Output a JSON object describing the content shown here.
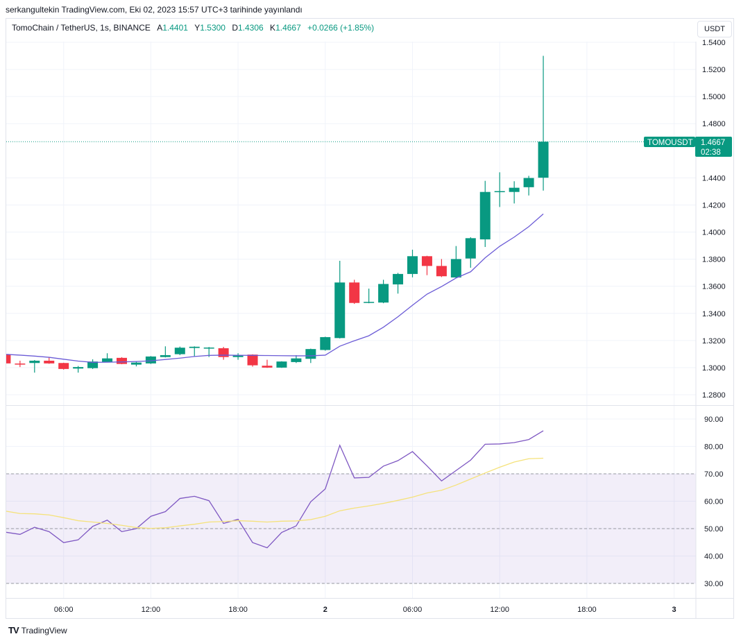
{
  "publisher_line": "serkangultekin TradingView.com, Eki 02, 2023 15:57 UTC+3 tarihinde yayınlandı",
  "legend": {
    "symbol": "TomoChain / TetherUS, 1s, BINANCE",
    "open_label": "A",
    "open": "1.4401",
    "high_label": "Y",
    "high": "1.5300",
    "low_label": "D",
    "low": "1.4306",
    "close_label": "K",
    "close": "1.4667",
    "change": "+0.0266 (+1.85%)"
  },
  "currency_button": "USDT",
  "price_label": {
    "ticker": "TOMOUSDT",
    "price": "1.4667",
    "countdown": "02:38"
  },
  "footer": {
    "brand": "TradingView"
  },
  "colors": {
    "up": "#089981",
    "down": "#f23645",
    "ma": "#6b5bd6",
    "rsi": "#7e57c2",
    "rsi_ma": "#f5e27a",
    "band": "#7e57c2",
    "accent": "#089981"
  },
  "chart_data": [
    {
      "type": "candlestick",
      "interval": "1h",
      "ylim": [
        1.27,
        1.55
      ],
      "y_ticks": [
        "1.5400",
        "1.5200",
        "1.5000",
        "1.4800",
        "1.4400",
        "1.4200",
        "1.4000",
        "1.3800",
        "1.3600",
        "1.3400",
        "1.3200",
        "1.3000",
        "1.2800"
      ],
      "x_ticks": [
        {
          "label": "06:00",
          "hour": 6
        },
        {
          "label": "12:00",
          "hour": 12
        },
        {
          "label": "18:00",
          "hour": 18
        },
        {
          "label": "2",
          "hour": 24,
          "bold": true
        },
        {
          "label": "06:00",
          "hour": 30
        },
        {
          "label": "12:00",
          "hour": 36
        },
        {
          "label": "18:00",
          "hour": 42
        },
        {
          "label": "3",
          "hour": 48,
          "bold": true
        }
      ],
      "grid": true,
      "last_price": 1.4667,
      "candles": [
        {
          "hour": 2,
          "o": 1.3099,
          "h": 1.3103,
          "l": 1.3028,
          "c": 1.3031
        },
        {
          "hour": 3,
          "o": 1.303,
          "h": 1.3051,
          "l": 1.3004,
          "c": 1.3029
        },
        {
          "hour": 4,
          "o": 1.3034,
          "h": 1.3056,
          "l": 1.2963,
          "c": 1.3051
        },
        {
          "hour": 5,
          "o": 1.3051,
          "h": 1.3077,
          "l": 1.3028,
          "c": 1.3031
        },
        {
          "hour": 6,
          "o": 1.3034,
          "h": 1.3036,
          "l": 1.2985,
          "c": 1.299
        },
        {
          "hour": 7,
          "o": 1.2993,
          "h": 1.3012,
          "l": 1.2963,
          "c": 1.3004
        },
        {
          "hour": 8,
          "o": 1.2996,
          "h": 1.3061,
          "l": 1.299,
          "c": 1.3045
        },
        {
          "hour": 9,
          "o": 1.3041,
          "h": 1.3106,
          "l": 1.3038,
          "c": 1.3068
        },
        {
          "hour": 10,
          "o": 1.3072,
          "h": 1.3077,
          "l": 1.3025,
          "c": 1.3027
        },
        {
          "hour": 11,
          "o": 1.3022,
          "h": 1.3048,
          "l": 1.3009,
          "c": 1.3037
        },
        {
          "hour": 12,
          "o": 1.3031,
          "h": 1.3085,
          "l": 1.3027,
          "c": 1.3082
        },
        {
          "hour": 13,
          "o": 1.3078,
          "h": 1.3157,
          "l": 1.3075,
          "c": 1.3092
        },
        {
          "hour": 14,
          "o": 1.3099,
          "h": 1.3155,
          "l": 1.3092,
          "c": 1.3147
        },
        {
          "hour": 15,
          "o": 1.3145,
          "h": 1.3157,
          "l": 1.3082,
          "c": 1.3154
        },
        {
          "hour": 16,
          "o": 1.3145,
          "h": 1.3152,
          "l": 1.3078,
          "c": 1.3148
        },
        {
          "hour": 17,
          "o": 1.3143,
          "h": 1.3153,
          "l": 1.3058,
          "c": 1.3078
        },
        {
          "hour": 18,
          "o": 1.3078,
          "h": 1.3106,
          "l": 1.3058,
          "c": 1.3092
        },
        {
          "hour": 19,
          "o": 1.3096,
          "h": 1.3098,
          "l": 1.3007,
          "c": 1.3017
        },
        {
          "hour": 20,
          "o": 1.3014,
          "h": 1.3058,
          "l": 1.2998,
          "c": 1.3
        },
        {
          "hour": 21,
          "o": 1.3,
          "h": 1.3047,
          "l": 1.2998,
          "c": 1.3045
        },
        {
          "hour": 22,
          "o": 1.3041,
          "h": 1.3092,
          "l": 1.3034,
          "c": 1.3068
        },
        {
          "hour": 23,
          "o": 1.3065,
          "h": 1.314,
          "l": 1.3034,
          "c": 1.3137
        },
        {
          "hour": 24,
          "o": 1.313,
          "h": 1.3228,
          "l": 1.3125,
          "c": 1.3225
        },
        {
          "hour": 25,
          "o": 1.3218,
          "h": 1.3788,
          "l": 1.3215,
          "c": 1.3628
        },
        {
          "hour": 26,
          "o": 1.3628,
          "h": 1.3648,
          "l": 1.347,
          "c": 1.3477
        },
        {
          "hour": 27,
          "o": 1.3478,
          "h": 1.3583,
          "l": 1.3475,
          "c": 1.3485
        },
        {
          "hour": 28,
          "o": 1.348,
          "h": 1.3648,
          "l": 1.3475,
          "c": 1.3617
        },
        {
          "hour": 29,
          "o": 1.3614,
          "h": 1.3699,
          "l": 1.3546,
          "c": 1.3691
        },
        {
          "hour": 30,
          "o": 1.3691,
          "h": 1.387,
          "l": 1.3666,
          "c": 1.3822
        },
        {
          "hour": 31,
          "o": 1.3822,
          "h": 1.3825,
          "l": 1.3682,
          "c": 1.375
        },
        {
          "hour": 32,
          "o": 1.375,
          "h": 1.3801,
          "l": 1.3668,
          "c": 1.3674
        },
        {
          "hour": 33,
          "o": 1.3665,
          "h": 1.3897,
          "l": 1.3662,
          "c": 1.3801
        },
        {
          "hour": 34,
          "o": 1.3805,
          "h": 1.3962,
          "l": 1.3737,
          "c": 1.3955
        },
        {
          "hour": 35,
          "o": 1.3946,
          "h": 1.4378,
          "l": 1.389,
          "c": 1.4296
        },
        {
          "hour": 36,
          "o": 1.43,
          "h": 1.4441,
          "l": 1.4185,
          "c": 1.4302
        },
        {
          "hour": 37,
          "o": 1.4296,
          "h": 1.4375,
          "l": 1.4211,
          "c": 1.4327
        },
        {
          "hour": 38,
          "o": 1.4331,
          "h": 1.4415,
          "l": 1.427,
          "c": 1.4399
        },
        {
          "hour": 39,
          "o": 1.4401,
          "h": 1.53,
          "l": 1.4306,
          "c": 1.4667
        }
      ],
      "moving_average": [
        1.3098,
        1.3092,
        1.3085,
        1.3076,
        1.3062,
        1.3048,
        1.3039,
        1.304,
        1.3042,
        1.3045,
        1.305,
        1.306,
        1.307,
        1.3082,
        1.309,
        1.3092,
        1.3091,
        1.309,
        1.3089,
        1.3088,
        1.3087,
        1.3087,
        1.3092,
        1.3158,
        1.3198,
        1.3235,
        1.3298,
        1.3375,
        1.346,
        1.3542,
        1.3598,
        1.3661,
        1.3707,
        1.381,
        1.3895,
        1.3963,
        1.404,
        1.4134
      ]
    },
    {
      "type": "line",
      "ylim": [
        25,
        95
      ],
      "y_ticks": [
        "90.00",
        "80.00",
        "70.00",
        "60.00",
        "50.00",
        "40.00",
        "30.00"
      ],
      "band": [
        30,
        70
      ],
      "midline": 50,
      "series": [
        {
          "values": [
            48.7,
            47.9,
            50.5,
            48.9,
            44.9,
            45.9,
            50.8,
            53.1,
            48.9,
            50.0,
            54.5,
            56.2,
            61.0,
            61.8,
            60.2,
            51.9,
            53.4,
            44.9,
            43.0,
            48.6,
            51.0,
            59.8,
            64.5,
            80.4,
            68.5,
            68.7,
            72.8,
            74.8,
            78.1,
            72.9,
            67.4,
            71.2,
            75.0,
            80.8,
            80.9,
            81.4,
            82.5,
            85.7
          ]
        },
        {
          "values": [
            56.4,
            55.5,
            55.4,
            55.0,
            54.0,
            52.9,
            52.4,
            51.9,
            51.2,
            50.4,
            50.1,
            50.3,
            51.0,
            51.6,
            52.4,
            52.6,
            52.9,
            52.7,
            52.4,
            52.7,
            52.8,
            53.3,
            54.5,
            56.5,
            57.5,
            58.3,
            59.2,
            60.3,
            61.5,
            63.0,
            64.0,
            65.9,
            68.1,
            70.3,
            72.4,
            74.3,
            75.5,
            75.7
          ]
        }
      ]
    }
  ]
}
